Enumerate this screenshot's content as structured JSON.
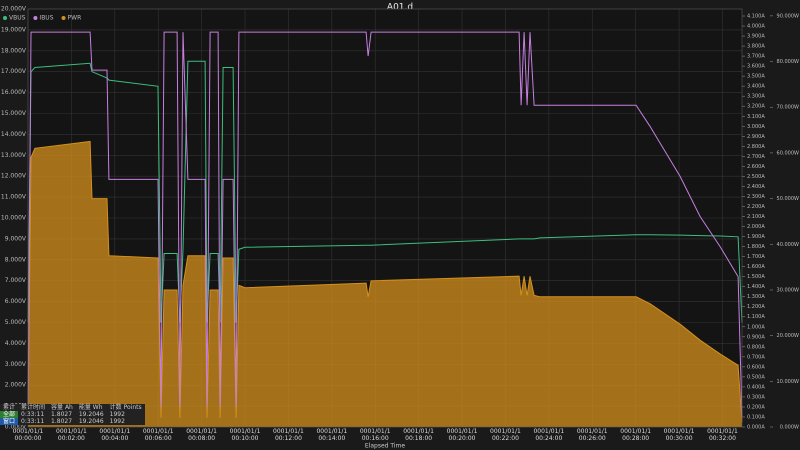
{
  "chart_data": {
    "type": "line",
    "title": "A01.d",
    "x_label": "Elapsed Time",
    "x": [
      0,
      0.14,
      0.32,
      2.86,
      2.95,
      3.64,
      3.73,
      5.99,
      6.13,
      6.27,
      6.87,
      7.0,
      7.14,
      7.37,
      8.16,
      8.25,
      8.39,
      8.76,
      8.85,
      8.99,
      9.45,
      9.59,
      9.72,
      10.0,
      15.58,
      15.67,
      15.81,
      22.63,
      22.72,
      22.86,
      23.0,
      23.13,
      23.32,
      23.59,
      28.02,
      28.66,
      30.05,
      30.97,
      31.89,
      32.72,
      32.9
    ],
    "series": [
      {
        "name": "VBUS",
        "color": "#3cbf7e",
        "axis": "y",
        "values": [
          5.0,
          17.0,
          17.2,
          17.4,
          17.0,
          16.7,
          16.6,
          16.3,
          5.0,
          8.3,
          8.3,
          5.0,
          8.5,
          17.5,
          17.5,
          5.0,
          8.3,
          8.3,
          5.0,
          17.2,
          17.2,
          5.0,
          8.5,
          8.6,
          8.7,
          8.7,
          8.7,
          9.0,
          9.0,
          9.0,
          9.0,
          9.0,
          9.0,
          9.05,
          9.2,
          9.2,
          9.18,
          9.16,
          9.14,
          9.1,
          5.0
        ]
      },
      {
        "name": "IBUS",
        "color": "#c77fe0",
        "axis": "y2",
        "values": [
          0.2,
          3.94,
          3.94,
          3.94,
          3.56,
          3.56,
          2.47,
          2.47,
          0.2,
          3.94,
          3.94,
          0.2,
          3.94,
          2.47,
          2.47,
          0.2,
          3.94,
          3.94,
          0.2,
          2.47,
          2.47,
          0.2,
          3.94,
          3.94,
          3.94,
          3.7,
          3.94,
          3.94,
          3.21,
          3.94,
          3.21,
          3.94,
          3.21,
          3.21,
          3.21,
          3.0,
          2.5,
          2.1,
          1.8,
          1.5,
          0.1
        ]
      },
      {
        "name": "PWR",
        "color": "#d4901c",
        "axis": "y3",
        "area": true,
        "values": [
          1,
          59,
          61,
          62.5,
          50,
          50,
          37.5,
          37,
          2,
          30,
          30,
          2,
          31,
          37.5,
          37.5,
          2,
          30,
          30,
          2,
          37,
          37,
          2,
          31,
          30.5,
          31.5,
          28.5,
          32,
          33,
          28.8,
          33,
          28.8,
          33,
          28.8,
          28.5,
          28.5,
          27,
          22.5,
          19,
          16,
          13.5,
          1
        ]
      }
    ],
    "xlim": [
      0,
      32.9
    ],
    "xticks": [
      {
        "value": 0,
        "label": "0001/01/1\n00:00:00"
      },
      {
        "value": 2,
        "label": "0001/01/1\n00:02:00"
      },
      {
        "value": 4,
        "label": "0001/01/1\n00:04:00"
      },
      {
        "value": 6,
        "label": "0001/01/1\n00:06:00"
      },
      {
        "value": 8,
        "label": "0001/01/1\n00:08:00"
      },
      {
        "value": 10,
        "label": "0001/01/1\n00:10:00"
      },
      {
        "value": 12,
        "label": "0001/01/1\n00:12:00"
      },
      {
        "value": 14,
        "label": "0001/01/1\n00:14:00"
      },
      {
        "value": 16,
        "label": "0001/01/1\n00:16:00"
      },
      {
        "value": 18,
        "label": "0001/01/1\n00:18:00"
      },
      {
        "value": 20,
        "label": "0001/01/1\n00:20:00"
      },
      {
        "value": 22,
        "label": "0001/01/1\n00:22:00"
      },
      {
        "value": 24,
        "label": "0001/01/1\n00:24:00"
      },
      {
        "value": 26,
        "label": "0001/01/1\n00:26:00"
      },
      {
        "value": 28,
        "label": "0001/01/1\n00:28:00"
      },
      {
        "value": 30,
        "label": "0001/01/1\n00:30:00"
      },
      {
        "value": 32,
        "label": "0001/01/1\n00:32:00"
      }
    ],
    "ylim": [
      0,
      20
    ],
    "yticks": [
      {
        "value": 0,
        "label": "0.000V"
      },
      {
        "value": 1,
        "label": "1.000V"
      },
      {
        "value": 2,
        "label": "2.000V"
      },
      {
        "value": 3,
        "label": "3.000V"
      },
      {
        "value": 4,
        "label": "4.000V"
      },
      {
        "value": 5,
        "label": "5.000V"
      },
      {
        "value": 6,
        "label": "6.000V"
      },
      {
        "value": 7,
        "label": "7.000V"
      },
      {
        "value": 8,
        "label": "8.000V"
      },
      {
        "value": 9,
        "label": "9.000V"
      },
      {
        "value": 10,
        "label": "10.000V"
      },
      {
        "value": 11,
        "label": "11.000V"
      },
      {
        "value": 12,
        "label": "12.000V"
      },
      {
        "value": 13,
        "label": "13.000V"
      },
      {
        "value": 14,
        "label": "14.000V"
      },
      {
        "value": 15,
        "label": "15.000V"
      },
      {
        "value": 16,
        "label": "16.000V"
      },
      {
        "value": 17,
        "label": "17.000V"
      },
      {
        "value": 18,
        "label": "18.000V"
      },
      {
        "value": 19,
        "label": "19.000V"
      },
      {
        "value": 20,
        "label": "20.000V"
      }
    ],
    "y2lim": [
      0,
      4.17
    ],
    "y2ticks": [
      {
        "value": 0,
        "label": "0.000A"
      },
      {
        "value": 0.1,
        "label": "0.100A"
      },
      {
        "value": 0.2,
        "label": "0.200A"
      },
      {
        "value": 0.3,
        "label": "0.300A"
      },
      {
        "value": 0.4,
        "label": "0.400A"
      },
      {
        "value": 0.5,
        "label": "0.500A"
      },
      {
        "value": 0.6,
        "label": "0.600A"
      },
      {
        "value": 0.7,
        "label": "0.700A"
      },
      {
        "value": 0.8,
        "label": "0.800A"
      },
      {
        "value": 0.9,
        "label": "0.900A"
      },
      {
        "value": 1.0,
        "label": "1.000A"
      },
      {
        "value": 1.1,
        "label": "1.100A"
      },
      {
        "value": 1.2,
        "label": "1.200A"
      },
      {
        "value": 1.3,
        "label": "1.300A"
      },
      {
        "value": 1.4,
        "label": "1.400A"
      },
      {
        "value": 1.5,
        "label": "1.500A"
      },
      {
        "value": 1.6,
        "label": "1.600A"
      },
      {
        "value": 1.7,
        "label": "1.700A"
      },
      {
        "value": 1.8,
        "label": "1.800A"
      },
      {
        "value": 1.9,
        "label": "1.900A"
      },
      {
        "value": 2.0,
        "label": "2.000A"
      },
      {
        "value": 2.1,
        "label": "2.100A"
      },
      {
        "value": 2.2,
        "label": "2.200A"
      },
      {
        "value": 2.3,
        "label": "2.300A"
      },
      {
        "value": 2.4,
        "label": "2.400A"
      },
      {
        "value": 2.5,
        "label": "2.500A"
      },
      {
        "value": 2.6,
        "label": "2.600A"
      },
      {
        "value": 2.7,
        "label": "2.700A"
      },
      {
        "value": 2.8,
        "label": "2.800A"
      },
      {
        "value": 2.9,
        "label": "2.900A"
      },
      {
        "value": 3.0,
        "label": "3.000A"
      },
      {
        "value": 3.1,
        "label": "3.100A"
      },
      {
        "value": 3.2,
        "label": "3.200A"
      },
      {
        "value": 3.3,
        "label": "3.300A"
      },
      {
        "value": 3.4,
        "label": "3.400A"
      },
      {
        "value": 3.5,
        "label": "3.500A"
      },
      {
        "value": 3.6,
        "label": "3.600A"
      },
      {
        "value": 3.7,
        "label": "3.700A"
      },
      {
        "value": 3.8,
        "label": "3.800A"
      },
      {
        "value": 3.9,
        "label": "3.900A"
      },
      {
        "value": 4.0,
        "label": "4.000A"
      },
      {
        "value": 4.1,
        "label": "4.100A"
      }
    ],
    "y3lim": [
      0,
      91.5
    ],
    "y3ticks": [
      {
        "value": 0,
        "label": "0.000W"
      },
      {
        "value": 10,
        "label": "10.000W"
      },
      {
        "value": 20,
        "label": "20.000W"
      },
      {
        "value": 30,
        "label": "30.000W"
      },
      {
        "value": 40,
        "label": "40.000W"
      },
      {
        "value": 50,
        "label": "50.000W"
      },
      {
        "value": 60,
        "label": "60.000W"
      },
      {
        "value": 70,
        "label": "70.000W"
      },
      {
        "value": 80,
        "label": "80.000W"
      },
      {
        "value": 90,
        "label": "90.000W"
      }
    ],
    "grid": true,
    "legend": "top-left"
  },
  "stats_table": {
    "header": [
      "累计",
      "累计时间",
      "容量 Ah",
      "能量 Wh",
      "计数 Points"
    ],
    "rows": [
      [
        "全部",
        "0:33:11",
        "1.8027",
        "19.2046",
        "1992"
      ],
      [
        "窗口",
        "0:33:11",
        "1.8027",
        "19.2046",
        "1992"
      ]
    ]
  }
}
